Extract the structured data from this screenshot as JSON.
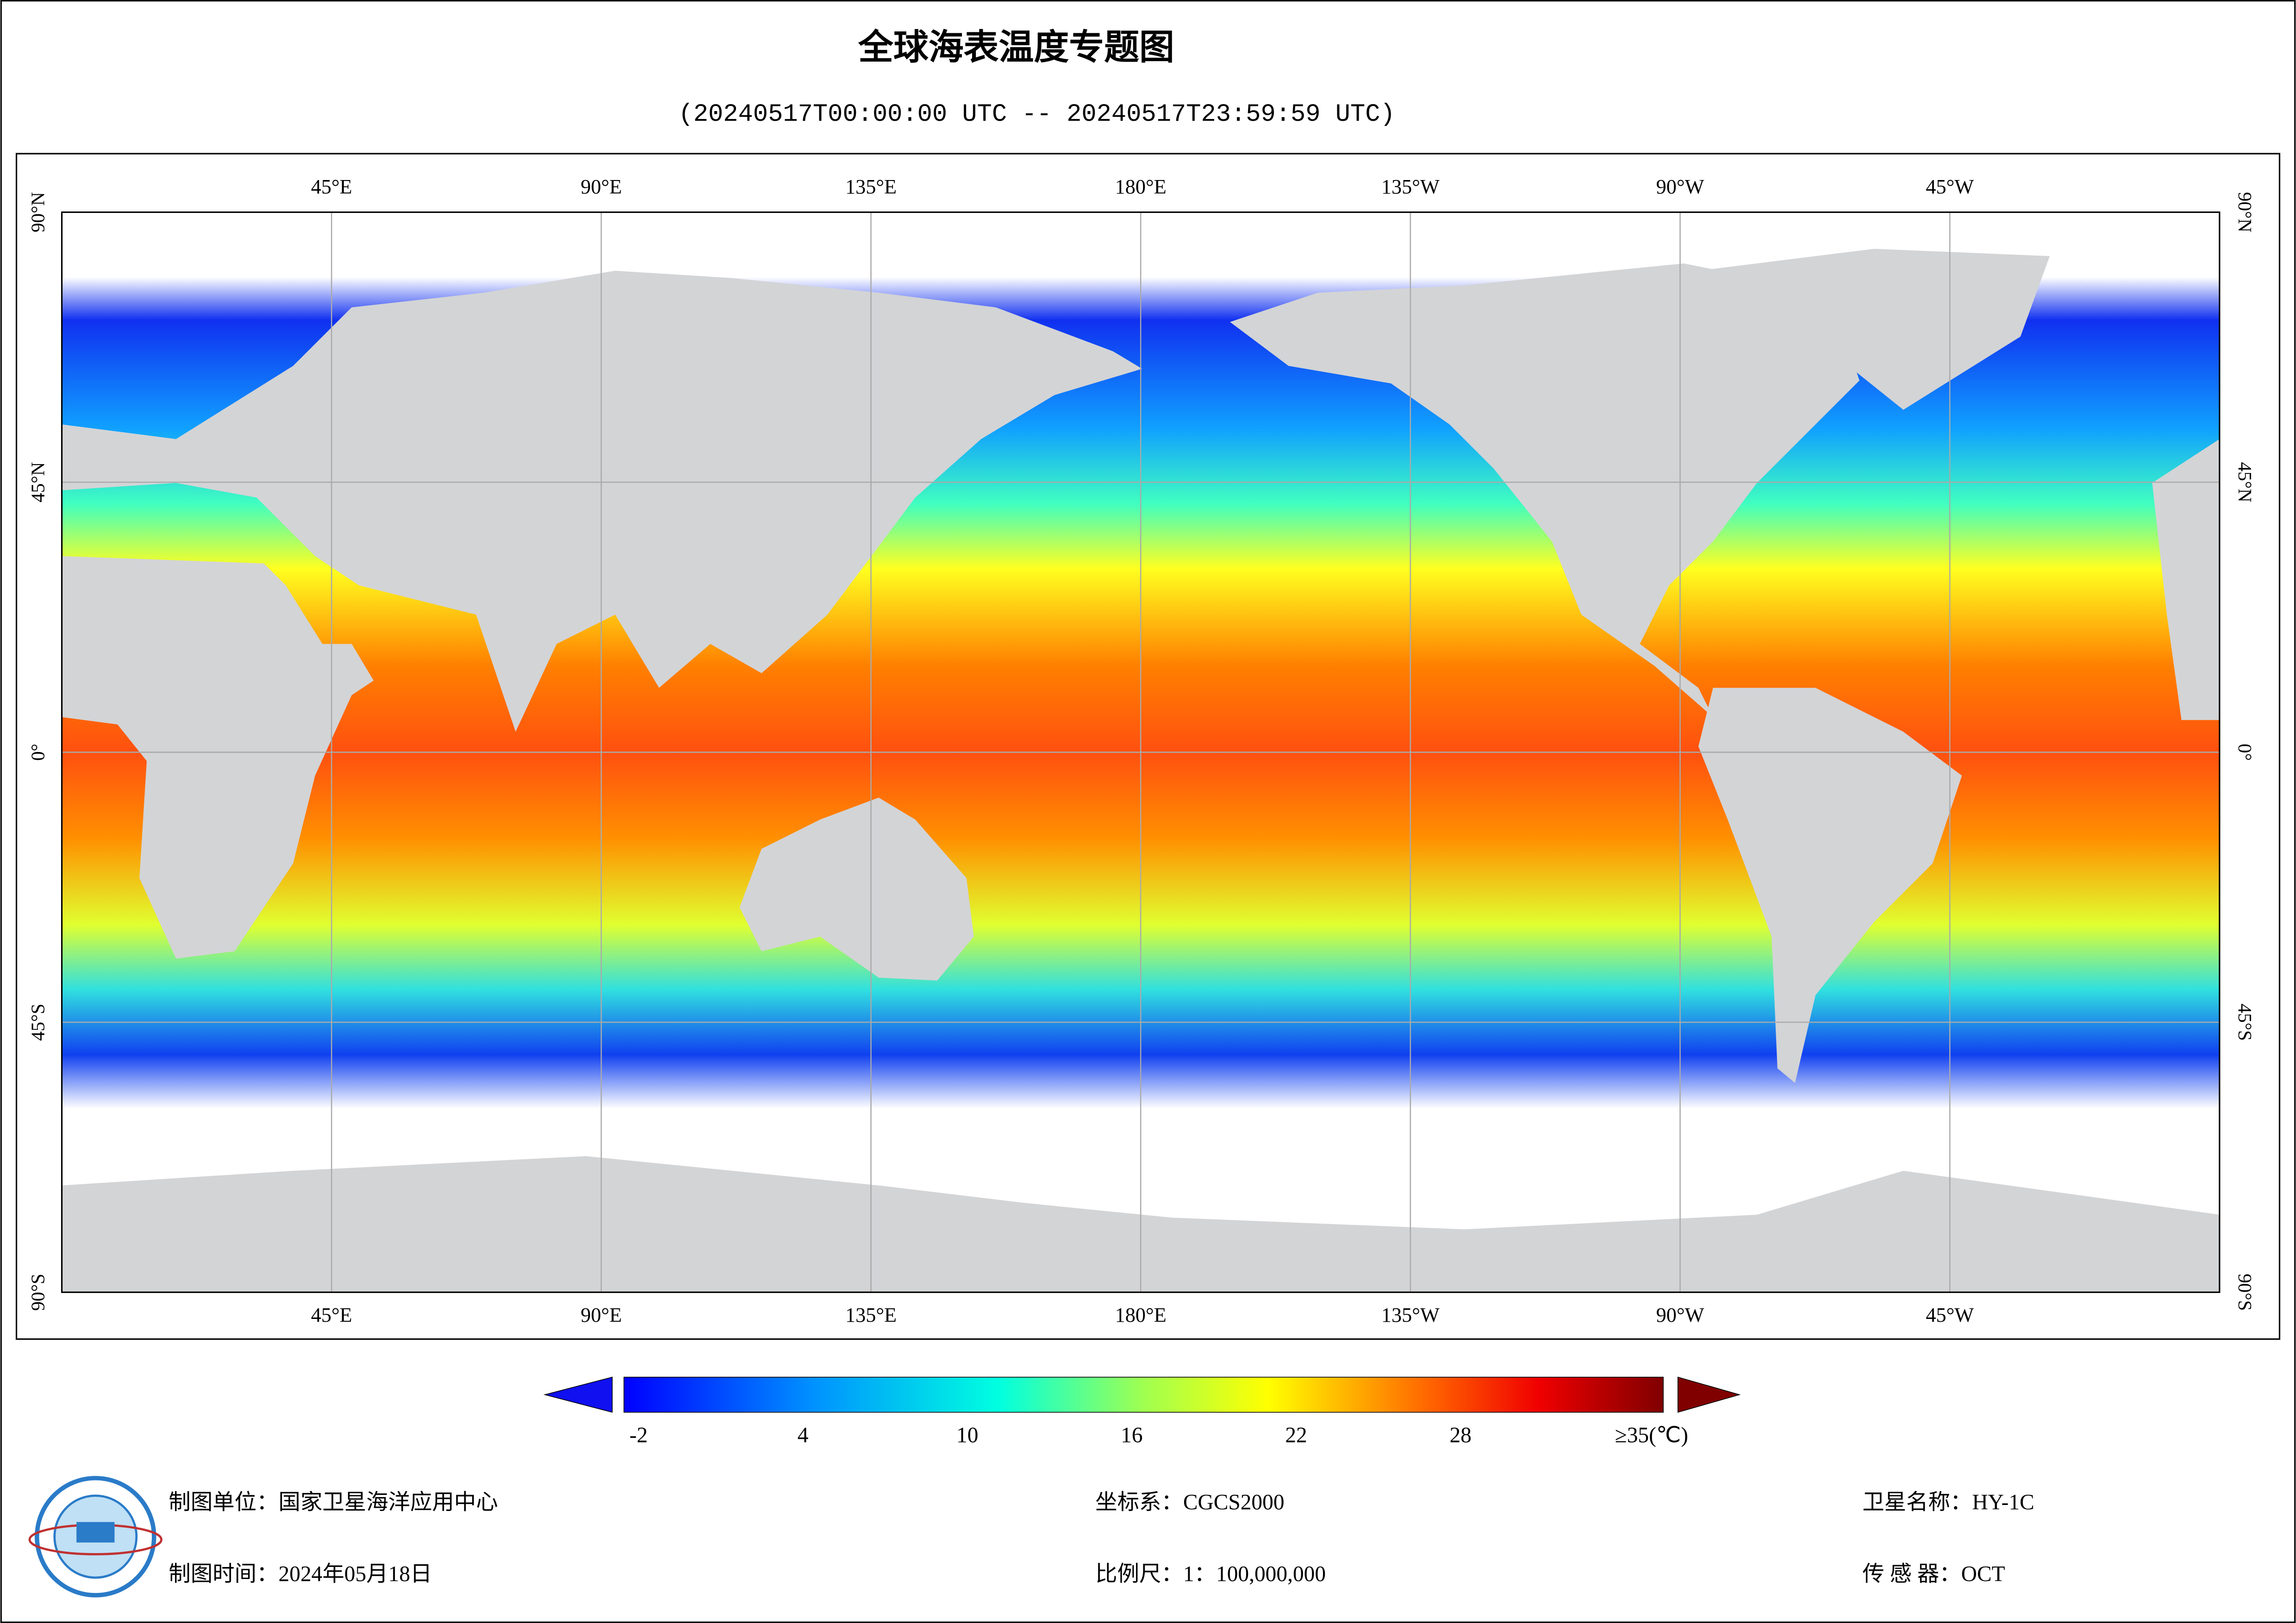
{
  "header": {
    "title": "全球海表温度专题图",
    "subtitle": "(20240517T00:00:00 UTC -- 20240517T23:59:59 UTC)"
  },
  "map": {
    "lon_labels": [
      "45°E",
      "90°E",
      "135°E",
      "180°E",
      "135°W",
      "90°W",
      "45°W"
    ],
    "lat_labels": [
      "90°N",
      "45°N",
      "0°",
      "45°S",
      "90°S"
    ]
  },
  "colorbar": {
    "ticks": [
      -2,
      4,
      10,
      16,
      22,
      28
    ],
    "max_label": "≥35(℃)"
  },
  "footer": {
    "unit": "制图单位：国家卫星海洋应用中心",
    "date": "制图时间：2024年05月18日",
    "crs": "坐标系：CGCS2000",
    "scale": "比例尺：1：100,000,000",
    "satellite": "卫星名称：HY-1C",
    "sensor": "传 感 器：OCT"
  }
}
